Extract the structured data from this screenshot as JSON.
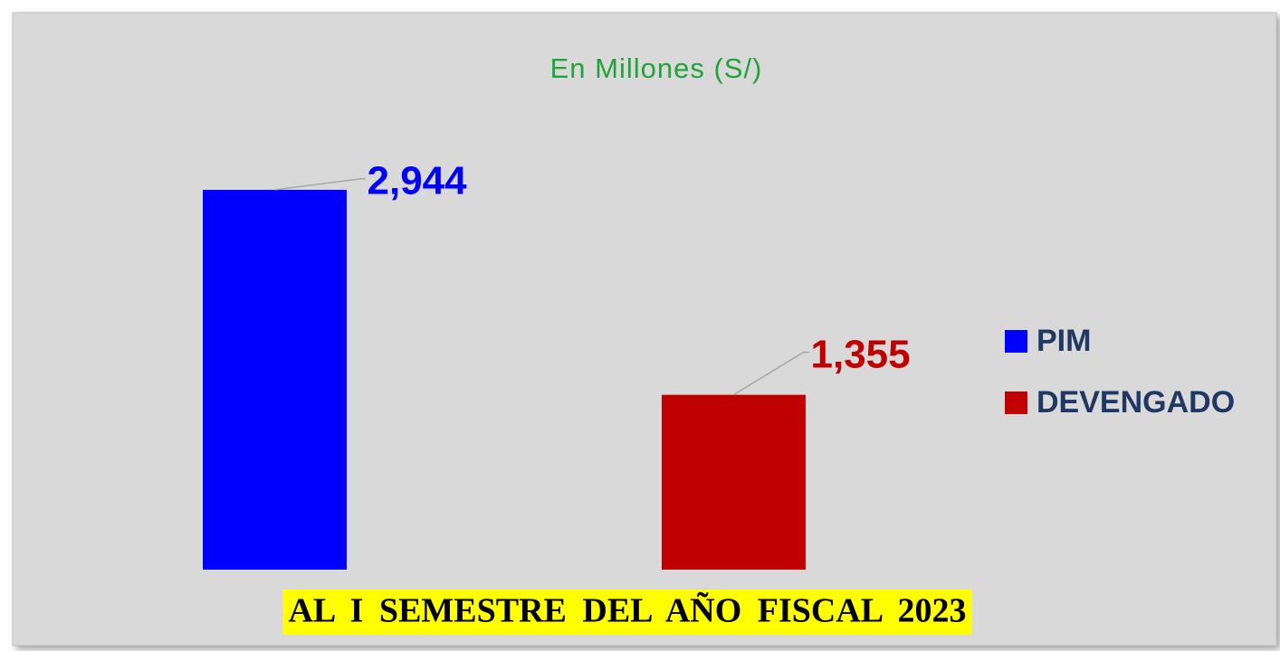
{
  "chart_data": {
    "type": "bar",
    "title": "En Millones (S/)",
    "categories": [
      "AL I SEMESTRE DEL AÑO FISCAL 2023"
    ],
    "series": [
      {
        "name": "PIM",
        "color": "#0000ff",
        "values": [
          2944
        ],
        "value_labels": [
          "2,944"
        ]
      },
      {
        "name": "DEVENGADO",
        "color": "#c00000",
        "values": [
          1355
        ],
        "value_labels": [
          "1,355"
        ]
      }
    ],
    "ylim": [
      0,
      3500
    ],
    "legend": "right"
  }
}
